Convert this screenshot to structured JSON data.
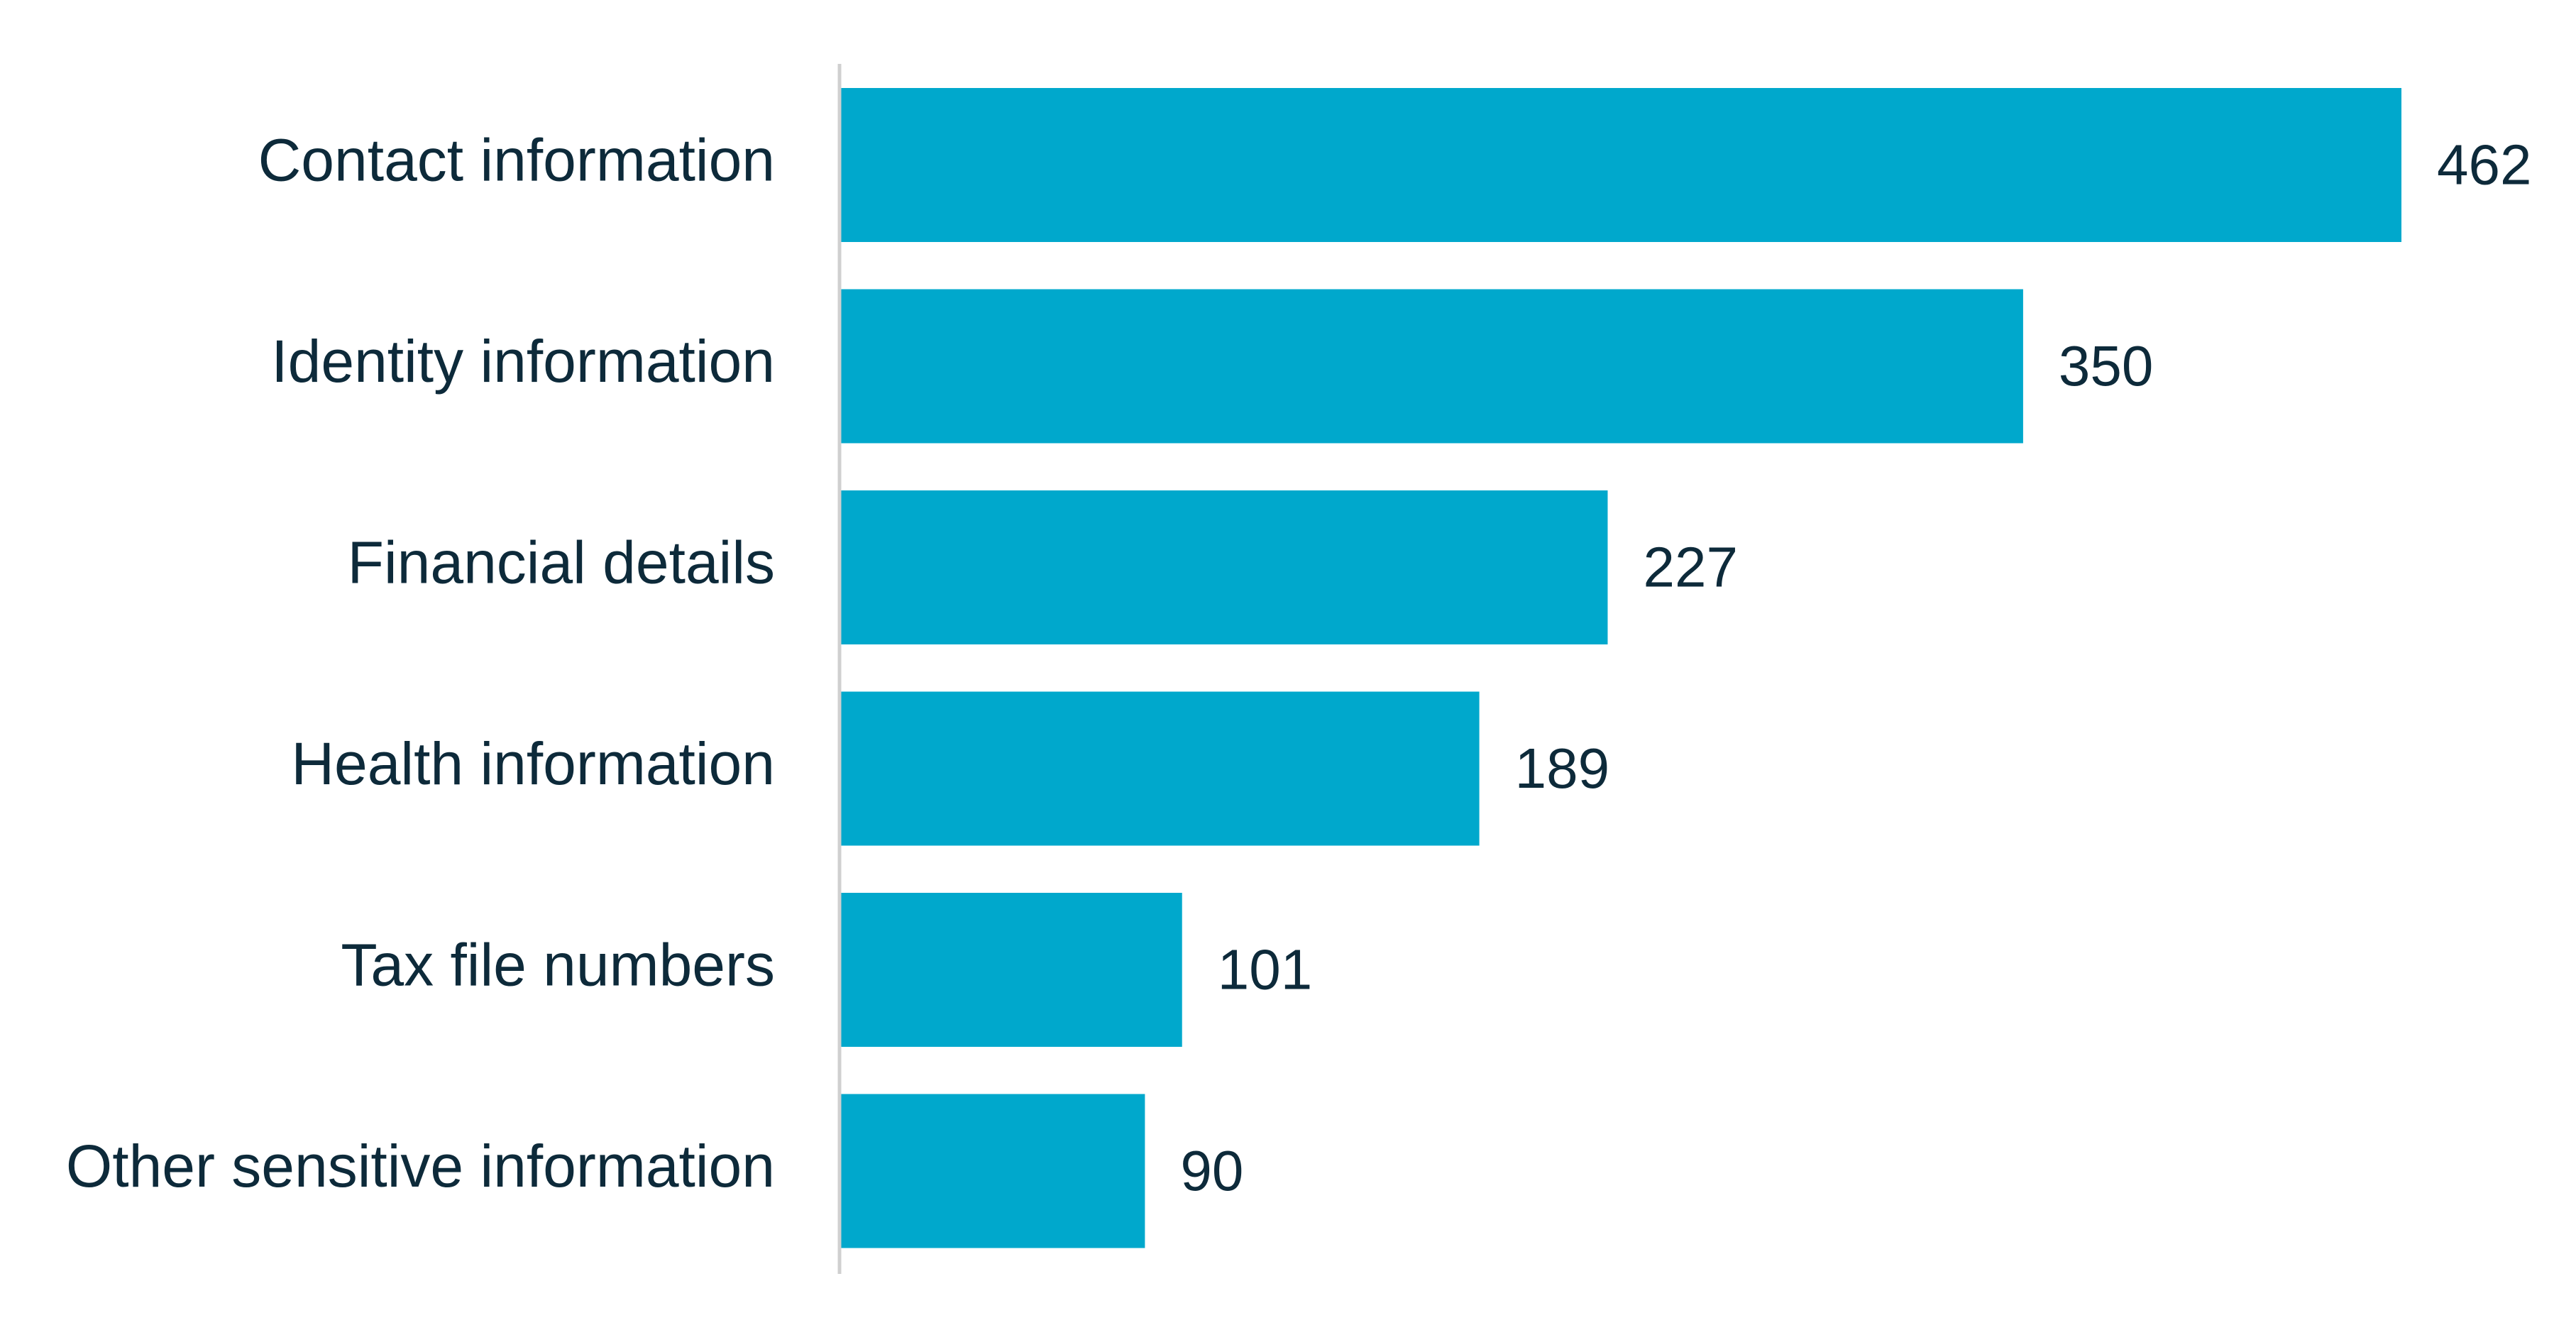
{
  "chart_data": {
    "type": "bar",
    "orientation": "horizontal",
    "title": "",
    "xlabel": "",
    "ylabel": "",
    "categories": [
      "Contact information",
      "Identity information",
      "Financial details",
      "Health information",
      "Tax file numbers",
      "Other sensitive information"
    ],
    "values": [
      462,
      350,
      227,
      189,
      101,
      90
    ],
    "xlim": [
      0,
      462
    ],
    "data_labels": true,
    "grid": false,
    "legend": "none",
    "colors": {
      "bar": "#00a8cc",
      "axis": "#d0d0d0",
      "text": "#0d2a3a"
    }
  }
}
